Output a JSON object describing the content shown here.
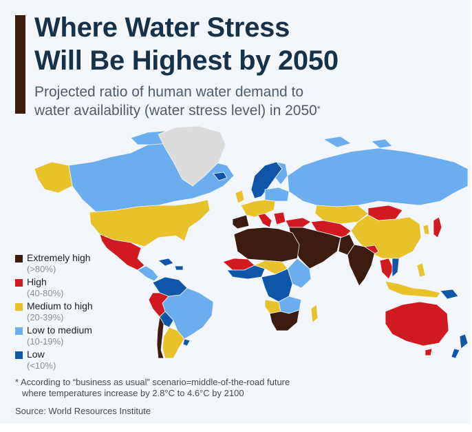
{
  "header": {
    "title_line1": "Where Water Stress",
    "title_line2": "Will Be Highest by 2050",
    "subtitle_line1": "Projected ratio of human water demand to",
    "subtitle_line2": "water availability (water stress level) in 2050",
    "subtitle_mark": "*"
  },
  "legend": {
    "items": [
      {
        "label": "Extremely high",
        "range": "(>80%)",
        "color": "#3b1c0e"
      },
      {
        "label": "High",
        "range": "(40-80%)",
        "color": "#d11a20"
      },
      {
        "label": "Medium to high",
        "range": "(20-39%)",
        "color": "#e8c22a"
      },
      {
        "label": "Low to medium",
        "range": "(10-19%)",
        "color": "#6aaef0"
      },
      {
        "label": "Low",
        "range": "(<10%)",
        "color": "#0f55a8"
      }
    ]
  },
  "colors": {
    "no_data": "#dcdcdc",
    "accent_bar": "#3b1c0e",
    "title": "#16324a"
  },
  "footer": {
    "footnote_line1": "* According to “business as usual” scenario=middle-of-the-road future",
    "footnote_line2": "where temperatures increase by 2.8°C to 4.6°C by 2100",
    "source": "Source: World Resources Institute"
  }
}
